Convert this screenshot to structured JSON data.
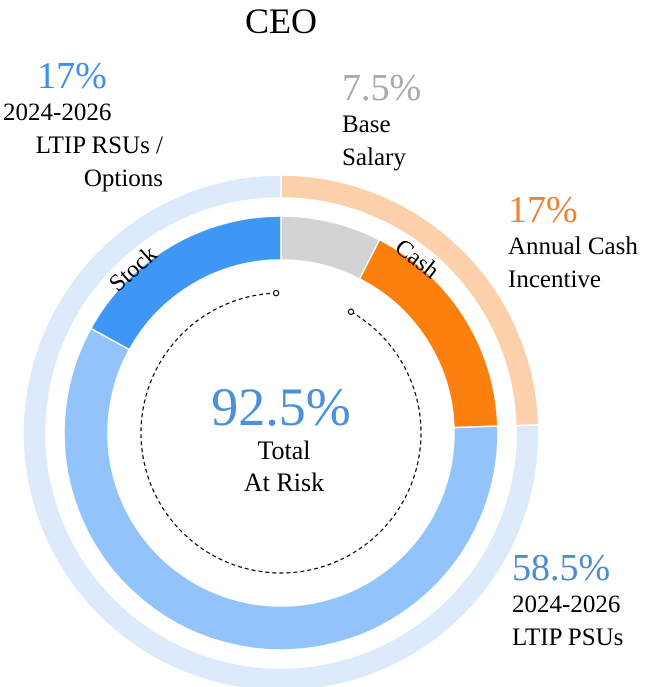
{
  "chart_data": {
    "type": "donut",
    "title": "CEO",
    "center": {
      "value": "92.5%",
      "label_line1": "Total",
      "label_line2": "At Risk"
    },
    "outer_ring": [
      {
        "name": "Cash",
        "value": 24.5,
        "color": "#FDD0AC"
      },
      {
        "name": "Stock",
        "value": 75.5,
        "color": "#DCEAFB"
      }
    ],
    "inner_ring": [
      {
        "name": "Base Salary",
        "value": 7.5,
        "percent_label": "7.5%",
        "label_lines": [
          "Base",
          "Salary"
        ],
        "color": "#D3D3D3",
        "label_color": "#AAAAAA"
      },
      {
        "name": "Annual Cash Incentive",
        "value": 17,
        "percent_label": "17%",
        "label_lines": [
          "Annual Cash",
          "Incentive"
        ],
        "color": "#FD7F0E",
        "label_color": "#EE8233"
      },
      {
        "name": "2024-2026 LTIP PSUs",
        "value": 58.5,
        "percent_label": "58.5%",
        "label_lines": [
          "2024-2026",
          "LTIP PSUs"
        ],
        "color": "#92C3FA",
        "label_color": "#4C8CD0"
      },
      {
        "name": "2024-2026 LTIP RSUs / Options",
        "value": 17,
        "percent_label": "17%",
        "label_lines": [
          "2024-2026",
          "LTIP RSUs /",
          "Options"
        ],
        "color": "#3F97F5",
        "label_color": "#3F8FF0"
      }
    ],
    "center_value_color": "#4A90DB"
  }
}
